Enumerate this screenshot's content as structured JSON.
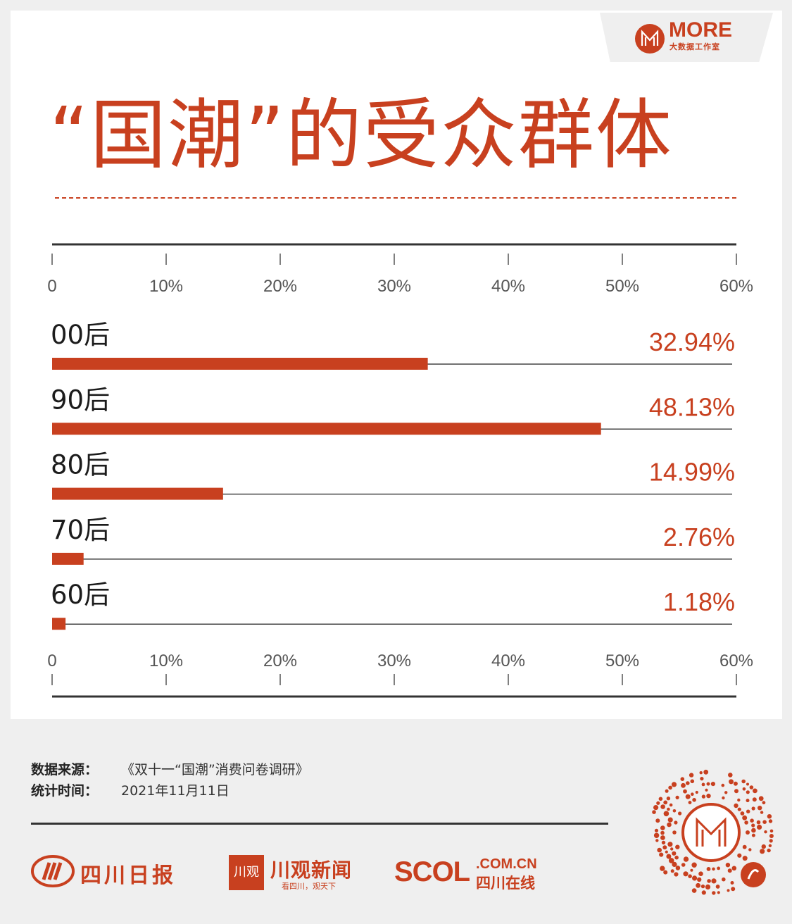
{
  "logo": {
    "name": "MORE",
    "sub": "大数据工作室"
  },
  "title": "“国潮”的受众群体",
  "chart_data": {
    "type": "bar",
    "orientation": "horizontal",
    "categories": [
      "00后",
      "90后",
      "80后",
      "70后",
      "60后"
    ],
    "values": [
      32.94,
      48.13,
      14.99,
      2.76,
      1.18
    ],
    "value_labels": [
      "32.94%",
      "48.13%",
      "14.99%",
      "2.76%",
      "1.18%"
    ],
    "xlim": [
      0,
      60
    ],
    "ticks": [
      "0",
      "10%",
      "20%",
      "30%",
      "40%",
      "50%",
      "60%"
    ],
    "bar_color": "#c8401f"
  },
  "source": {
    "label": "数据来源：",
    "value": "《双十一“国潮”消费问卷调研》",
    "time_label": "统计时间：",
    "time_value": "2021年11月11日"
  },
  "brands": {
    "b1": "四川日报",
    "b2_box": "川观",
    "b2": "川观新闻",
    "b2_sub": "看四川，观天下",
    "b3": "SCOL",
    "b3_domain": ".COM.CN",
    "b3_cn": "四川在线"
  },
  "accent_color": "#c8401f"
}
